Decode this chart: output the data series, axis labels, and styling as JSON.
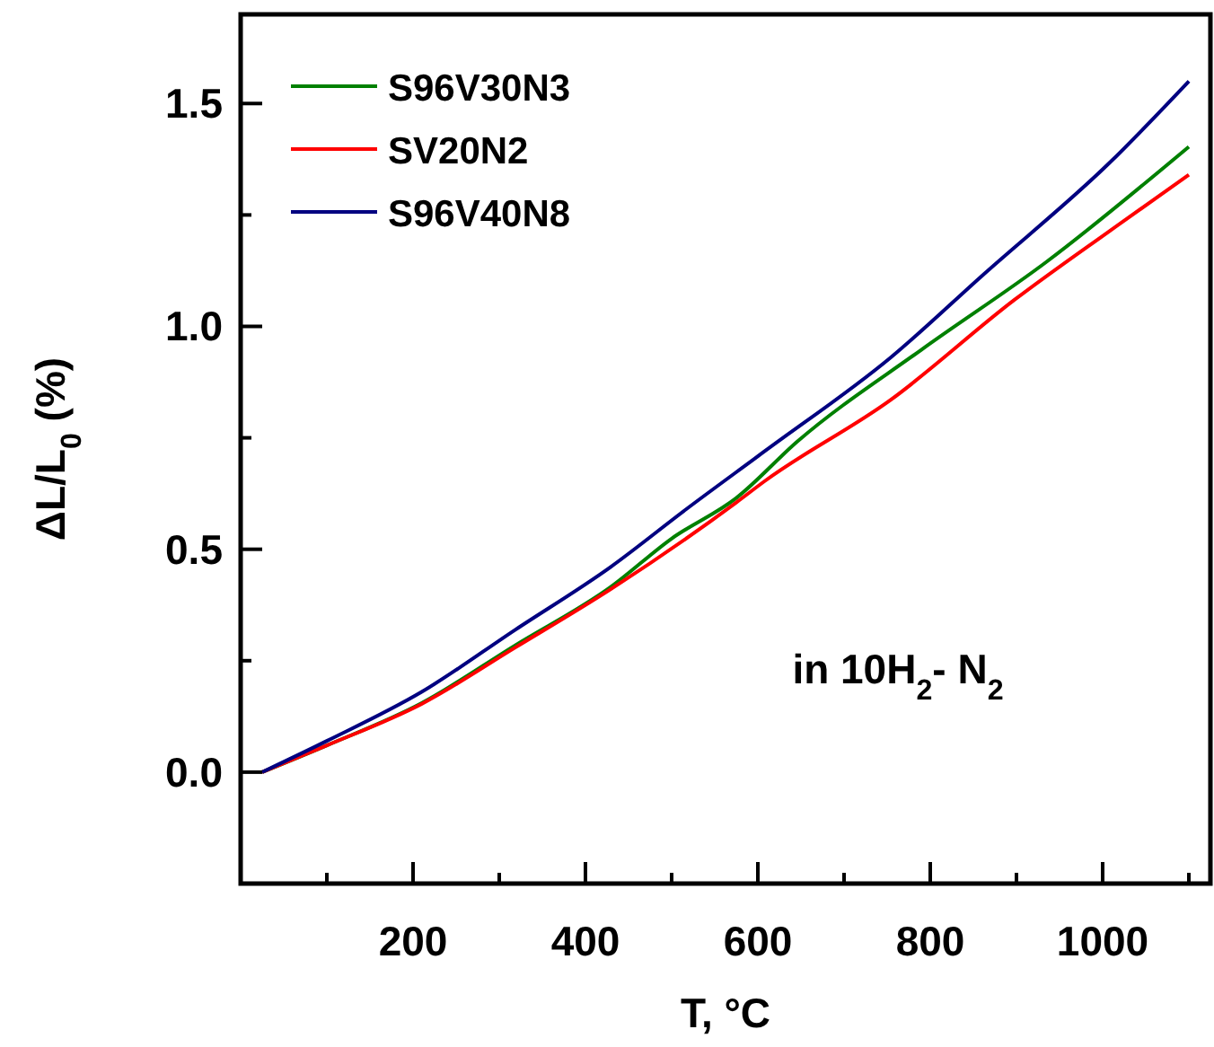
{
  "chart_data": {
    "type": "line",
    "xlabel": "T, °C",
    "ylabel": "ΔL/L$_{0}$ (%)",
    "xlim": [
      0,
      1125
    ],
    "ylim": [
      -0.25,
      1.7
    ],
    "xticks": [
      {
        "value": 100,
        "label": null
      },
      200,
      {
        "value": 300,
        "label": null
      },
      400,
      {
        "value": 500,
        "label": null
      },
      600,
      {
        "value": 700,
        "label": null
      },
      800,
      {
        "value": 900,
        "label": null
      },
      1000,
      {
        "value": 1100,
        "label": null
      }
    ],
    "yticks": [
      {
        "value": 0,
        "label": "0.0"
      },
      {
        "value": 0.25,
        "label": null
      },
      {
        "value": 0.5,
        "label": "0.5"
      },
      {
        "value": 0.75,
        "label": null
      },
      {
        "value": 1.0,
        "label": "1.0"
      },
      {
        "value": 1.25,
        "label": null
      },
      1.5
    ],
    "legend": "top left",
    "grid": false,
    "line_style": "solid",
    "annotations": [
      "in 10H$_{2}$- N$_{2}$"
    ],
    "series": [
      {
        "name": "S96V30N3",
        "color": "#008000",
        "x": [
          25,
          100,
          210,
          319,
          429,
          500,
          575,
          646,
          790,
          935,
          1100
        ],
        "values": [
          0,
          0.06,
          0.155,
          0.285,
          0.415,
          0.524,
          0.615,
          0.742,
          0.948,
          1.145,
          1.403
        ]
      },
      {
        "name": "SV20N2",
        "color": "#ff0000",
        "x": [
          25,
          100,
          210,
          319,
          429,
          575,
          608,
          754,
          898,
          1008,
          1100
        ],
        "values": [
          0,
          0.06,
          0.153,
          0.28,
          0.41,
          0.605,
          0.653,
          0.835,
          1.06,
          1.214,
          1.34
        ]
      },
      {
        "name": "S96V40N8",
        "color": "#000080",
        "x": [
          25,
          100,
          210,
          319,
          429,
          517,
          608,
          754,
          862,
          1008,
          1100
        ],
        "values": [
          0,
          0.07,
          0.18,
          0.32,
          0.46,
          0.59,
          0.72,
          0.93,
          1.117,
          1.367,
          1.55
        ]
      }
    ]
  }
}
